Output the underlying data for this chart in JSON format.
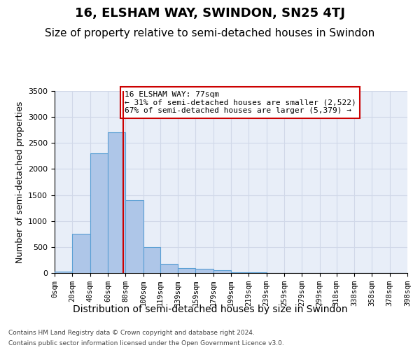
{
  "title": "16, ELSHAM WAY, SWINDON, SN25 4TJ",
  "subtitle": "Size of property relative to semi-detached houses in Swindon",
  "xlabel": "Distribution of semi-detached houses by size in Swindon",
  "ylabel": "Number of semi-detached properties",
  "footer_line1": "Contains HM Land Registry data © Crown copyright and database right 2024.",
  "footer_line2": "Contains public sector information licensed under the Open Government Licence v3.0.",
  "bin_edges": [
    0,
    20,
    40,
    60,
    80,
    100,
    119,
    139,
    159,
    179,
    199,
    219,
    239,
    259,
    279,
    299,
    318,
    338,
    358,
    378,
    398
  ],
  "bar_heights": [
    30,
    750,
    2300,
    2700,
    1400,
    500,
    175,
    100,
    75,
    50,
    20,
    10,
    5,
    5,
    3,
    3,
    2,
    2,
    1,
    1
  ],
  "bar_color": "#aec6e8",
  "bar_edge_color": "#5a9fd4",
  "grid_color": "#d0d8e8",
  "background_color": "#e8eef8",
  "property_size": 77,
  "annotation_text": "16 ELSHAM WAY: 77sqm\n← 31% of semi-detached houses are smaller (2,522)\n67% of semi-detached houses are larger (5,379) →",
  "annotation_box_color": "#ffffff",
  "annotation_border_color": "#cc0000",
  "vline_color": "#cc0000",
  "ylim": [
    0,
    3500
  ],
  "yticks": [
    0,
    500,
    1000,
    1500,
    2000,
    2500,
    3000,
    3500
  ],
  "title_fontsize": 13,
  "subtitle_fontsize": 11,
  "tick_label_fontsize": 7.5,
  "ylabel_fontsize": 9,
  "xlabel_fontsize": 10
}
